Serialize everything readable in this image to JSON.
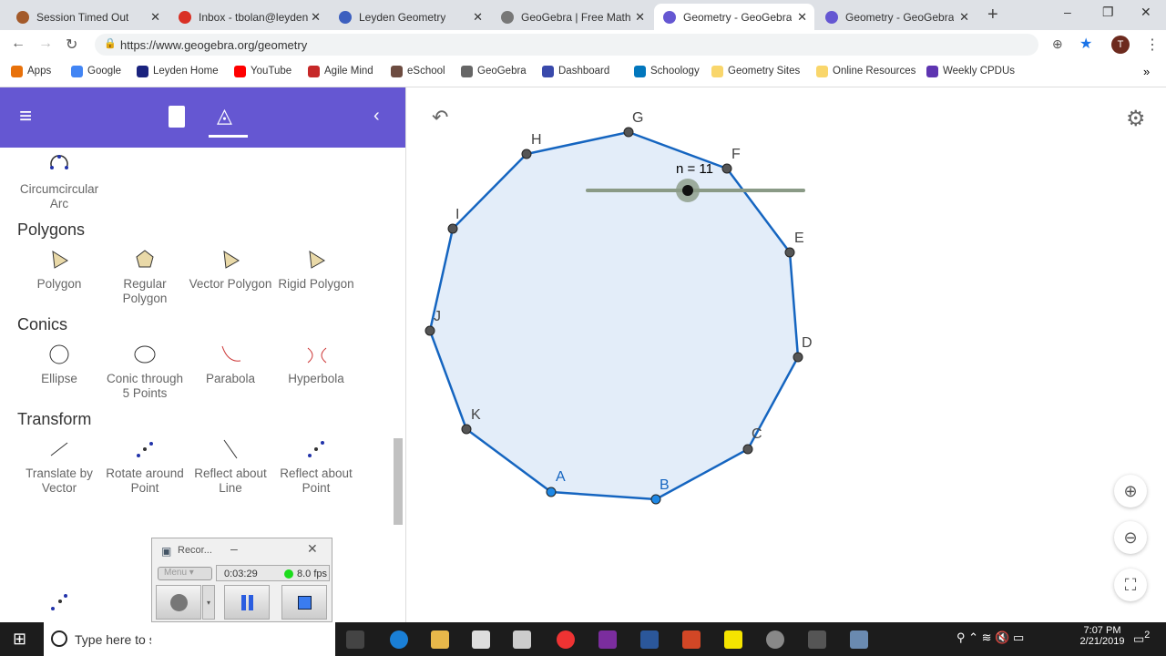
{
  "browser": {
    "tabs": [
      {
        "title": "Session Timed Out",
        "color": "#a35a2a"
      },
      {
        "title": "Inbox - tbolan@leyden",
        "color": "#d93025"
      },
      {
        "title": "Leyden Geometry",
        "color": "#3c5fbf"
      },
      {
        "title": "GeoGebra | Free Math",
        "color": "#777777"
      },
      {
        "title": "Geometry - GeoGebra",
        "color": "#6557d2",
        "active": true
      },
      {
        "title": "Geometry - GeoGebra",
        "color": "#6557d2"
      }
    ],
    "url": "https://www.geogebra.org/geometry",
    "profile_initial": "T",
    "bookmarks": [
      {
        "label": "Apps",
        "color": "#e8710a"
      },
      {
        "label": "Google",
        "color": "#4285f4"
      },
      {
        "label": "Leyden Home",
        "color": "#1a237e"
      },
      {
        "label": "YouTube",
        "color": "#ff0000"
      },
      {
        "label": "Agile Mind",
        "color": "#c62828"
      },
      {
        "label": "eSchool",
        "color": "#6d4c41"
      },
      {
        "label": "GeoGebra",
        "color": "#666666"
      },
      {
        "label": "Dashboard",
        "color": "#3949ab"
      },
      {
        "label": "Schoology",
        "color": "#0277bd"
      },
      {
        "label": "Geometry Sites",
        "color": "#f9d66b"
      },
      {
        "label": "Online Resources",
        "color": "#f9d66b"
      },
      {
        "label": "Weekly CPDUs",
        "color": "#5e35b1"
      }
    ]
  },
  "sidebar": {
    "accent": "#6557d2",
    "items": [
      {
        "label": "Circumcircular Arc",
        "section": ""
      },
      {
        "section": "Polygons"
      },
      {
        "label": "Polygon"
      },
      {
        "label": "Regular Polygon"
      },
      {
        "label": "Vector Polygon"
      },
      {
        "label": "Rigid Polygon"
      },
      {
        "section": "Conics"
      },
      {
        "label": "Ellipse"
      },
      {
        "label": "Conic through 5 Points"
      },
      {
        "label": "Parabola"
      },
      {
        "label": "Hyperbola"
      },
      {
        "section": "Transform"
      },
      {
        "label": "Translate by Vector"
      },
      {
        "label": "Rotate around Point"
      },
      {
        "label": "Reflect about Line"
      },
      {
        "label": "Reflect about Point"
      }
    ],
    "sections": {
      "polygons": "Polygons",
      "conics": "Conics",
      "transform": "Transform"
    },
    "tools": {
      "arc": "Circumcircular Arc",
      "polygon": "Polygon",
      "regular": "Regular Polygon",
      "vector": "Vector Polygon",
      "rigid": "Rigid Polygon",
      "ellipse": "Ellipse",
      "conic5": "Conic through 5 Points",
      "parabola": "Parabola",
      "hyperbola": "Hyperbola",
      "translate": "Translate by Vector",
      "rotate": "Rotate a",
      "rotate2": "Poi",
      "reflect": "bout"
    }
  },
  "canvas": {
    "slider_label": "n = 11",
    "slider_value": 11,
    "vertices": [
      "A",
      "B",
      "C",
      "D",
      "E",
      "F",
      "G",
      "H",
      "I",
      "J",
      "K"
    ],
    "polygon_color": "#1565c0",
    "fill": "#e3edf9"
  },
  "recorder": {
    "title": "Recor...",
    "menu": "Menu",
    "time": "0:03:29",
    "fps": "8.0 fps"
  },
  "taskbar": {
    "search_placeholder": "Type here to search",
    "time": "7:07 PM",
    "date": "2/21/2019",
    "notifications": "2"
  }
}
